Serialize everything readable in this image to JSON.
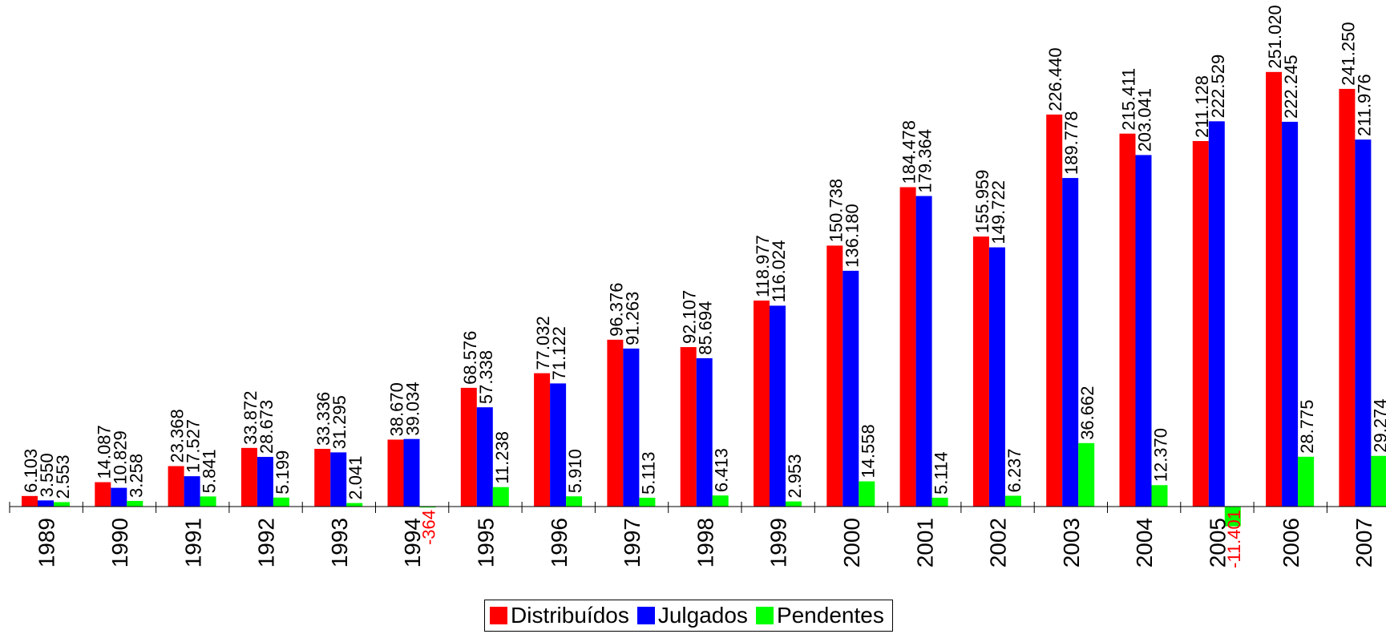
{
  "chart_data": {
    "type": "bar",
    "categories": [
      "1989",
      "1990",
      "1991",
      "1992",
      "1993",
      "1994",
      "1995",
      "1996",
      "1997",
      "1998",
      "1999",
      "2000",
      "2001",
      "2002",
      "2003",
      "2004",
      "2005",
      "2006",
      "2007"
    ],
    "series": [
      {
        "name": "Distribuídos",
        "color": "#ff0000",
        "values": [
          6103,
          14087,
          23368,
          33872,
          33336,
          38670,
          68576,
          77032,
          96376,
          92107,
          118977,
          150738,
          184478,
          155959,
          226440,
          215411,
          211128,
          251020,
          241250
        ],
        "labels": [
          "6.103",
          "14.087",
          "23.368",
          "33.872",
          "33.336",
          "38.670",
          "68.576",
          "77.032",
          "96.376",
          "92.107",
          "118.977",
          "150.738",
          "184.478",
          "155.959",
          "226.440",
          "215.411",
          "211.128",
          "251.020",
          "241.250"
        ]
      },
      {
        "name": "Julgados",
        "color": "#0000ff",
        "values": [
          3550,
          10829,
          17527,
          28673,
          31295,
          39034,
          57338,
          71122,
          91263,
          85694,
          116024,
          136180,
          179364,
          149722,
          189778,
          203041,
          222529,
          222245,
          211976
        ],
        "labels": [
          "3.550",
          "10.829",
          "17.527",
          "28.673",
          "31.295",
          "39.034",
          "57.338",
          "71.122",
          "91.263",
          "85.694",
          "116.024",
          "136.180",
          "179.364",
          "149.722",
          "189.778",
          "203.041",
          "222.529",
          "222.245",
          "211.976"
        ]
      },
      {
        "name": "Pendentes",
        "color": "#00ff00",
        "values": [
          2553,
          3258,
          5841,
          5199,
          2041,
          -364,
          11238,
          5910,
          5113,
          6413,
          2953,
          14558,
          5114,
          6237,
          36662,
          12370,
          -11401,
          28775,
          29274
        ],
        "labels": [
          "2.553",
          "3.258",
          "5.841",
          "5.199",
          "2.041",
          "-364",
          "11.238",
          "5.910",
          "5.113",
          "6.413",
          "2.953",
          "14.558",
          "5.114",
          "6.237",
          "36.662",
          "12.370",
          "-11.401",
          "28.775",
          "29.274"
        ]
      }
    ],
    "negative_label_color": "#ff0000",
    "ylim": [
      -11401,
      251020
    ],
    "grid": false,
    "legend_position": "bottom-center"
  }
}
